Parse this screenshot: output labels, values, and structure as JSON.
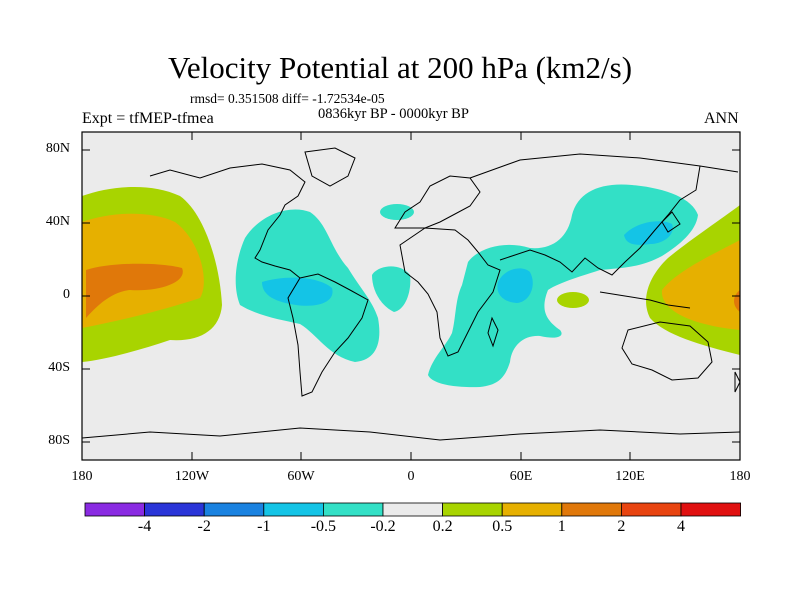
{
  "title": "Velocity Potential at 200 hPa (km2/s)",
  "stats": "rmsd= 0.351508 diff= -1.72534e-05",
  "period": "0836kyr BP - 0000kyr BP",
  "experiment": "Expt = tfMEP-tfmea",
  "season": "ANN",
  "y_axis_labels": [
    "80N",
    "40N",
    "0",
    "40S",
    "80S"
  ],
  "x_axis_labels": [
    "180",
    "120W",
    "60W",
    "0",
    "60E",
    "120E",
    "180"
  ],
  "colorbar": {
    "labels": [
      "-4",
      "-2",
      "-1",
      "-0.5",
      "-0.2",
      "0.2",
      "0.5",
      "1",
      "2",
      "4"
    ],
    "colors": [
      "#8a2be2",
      "#2a35d8",
      "#1a82e0",
      "#14c4e6",
      "#33e0c6",
      "#ebebeb",
      "#a8d400",
      "#e6b000",
      "#e0780a",
      "#e84410",
      "#e01010"
    ]
  }
}
